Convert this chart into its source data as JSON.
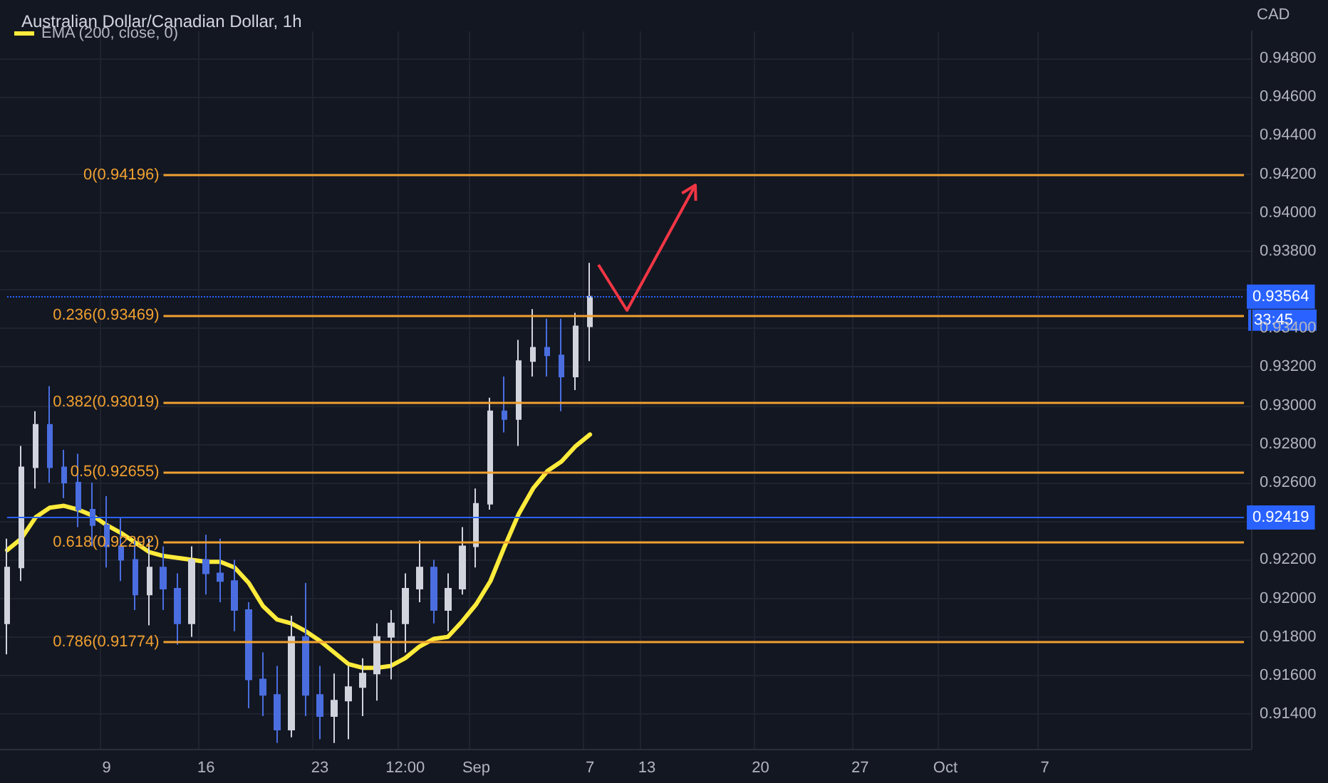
{
  "chart_data": {
    "type": "candlestick",
    "title": "Australian Dollar/Canadian Dollar, 1h",
    "ylabel": "CAD",
    "categories": [
      null,
      null,
      null,
      null,
      null,
      null,
      null,
      "9",
      null,
      null,
      null,
      null,
      null,
      null,
      "16",
      null,
      null,
      null,
      null,
      null,
      null,
      null,
      "23",
      null,
      null,
      null,
      null,
      null,
      "12:00",
      null,
      null,
      null,
      null,
      "Sep",
      null,
      null,
      null,
      null,
      null,
      null,
      null,
      "7",
      null,
      null,
      null,
      "13",
      null,
      null,
      null,
      null,
      null,
      null,
      null,
      "20",
      null,
      null,
      null,
      null,
      null,
      null,
      "27",
      null,
      null,
      null,
      null,
      null,
      "Oct",
      null,
      null,
      null,
      null,
      null,
      null,
      "7",
      null,
      null,
      null,
      null,
      null,
      null,
      null,
      null,
      null,
      null,
      null,
      null,
      null,
      null
    ],
    "series": [
      {
        "colors": [
          "#d1d4dc",
          "#d1d4dc",
          "#d1d4dc",
          "#4a6ee0",
          "#4a6ee0",
          "#4a6ee0",
          "#4a6ee0",
          "#4a6ee0",
          "#4a6ee0",
          "#4a6ee0",
          "#d1d4dc",
          "#4a6ee0",
          "#4a6ee0",
          "#d1d4dc",
          "#4a6ee0",
          "#4a6ee0",
          "#4a6ee0",
          "#4a6ee0",
          "#4a6ee0",
          "#4a6ee0",
          "#d1d4dc",
          "#4a6ee0",
          "#4a6ee0",
          "#d1d4dc",
          "#d1d4dc",
          "#d1d4dc",
          "#d1d4dc",
          "#d1d4dc",
          "#d1d4dc",
          "#d1d4dc",
          "#4a6ee0",
          "#d1d4dc",
          "#d1d4dc",
          "#d1d4dc",
          "#d1d4dc",
          "#4a6ee0",
          "#d1d4dc",
          "#d1d4dc",
          "#4a6ee0",
          "#4a6ee0",
          "#d1d4dc",
          "#d1d4dc",
          null,
          null,
          null,
          null,
          null,
          null,
          null,
          null,
          null,
          null,
          null,
          null,
          null,
          null,
          null,
          null,
          null,
          null,
          null,
          null,
          null,
          null,
          null,
          null,
          null,
          null,
          null,
          null,
          null,
          null,
          null,
          null,
          null,
          null,
          null,
          null,
          null,
          null,
          null,
          null,
          null,
          null,
          null,
          null,
          null,
          null
        ],
        "ohlc": [
          [
            0.9187,
            0.9231,
            0.9171,
            0.9216
          ],
          [
            0.9216,
            0.9279,
            0.9209,
            0.9268
          ],
          [
            0.9268,
            0.9297,
            0.9257,
            0.929
          ],
          [
            0.929,
            0.931,
            0.926,
            0.9268
          ],
          [
            0.9268,
            0.9277,
            0.9252,
            0.926
          ],
          [
            0.926,
            0.9275,
            0.9237,
            0.9246
          ],
          [
            0.9246,
            0.926,
            0.9227,
            0.9238
          ],
          [
            0.9238,
            0.9253,
            0.9216,
            0.9227
          ],
          [
            0.9227,
            0.9242,
            0.9209,
            0.922
          ],
          [
            0.922,
            0.9231,
            0.9194,
            0.9202
          ],
          [
            0.9202,
            0.9231,
            0.9186,
            0.9216
          ],
          [
            0.9216,
            0.9227,
            0.9194,
            0.9205
          ],
          [
            0.9205,
            0.9213,
            0.9176,
            0.9187
          ],
          [
            0.9187,
            0.9227,
            0.918,
            0.922
          ],
          [
            0.922,
            0.9233,
            0.9202,
            0.9213
          ],
          [
            0.9213,
            0.9231,
            0.9198,
            0.9209
          ],
          [
            0.9209,
            0.922,
            0.9183,
            0.9194
          ],
          [
            0.9194,
            0.9198,
            0.9143,
            0.9158
          ],
          [
            0.9158,
            0.9172,
            0.9139,
            0.915
          ],
          [
            0.915,
            0.9165,
            0.9125,
            0.9132
          ],
          [
            0.9132,
            0.9191,
            0.9128,
            0.918
          ],
          [
            0.918,
            0.9208,
            0.9139,
            0.915
          ],
          [
            0.915,
            0.9165,
            0.9127,
            0.9139
          ],
          [
            0.9139,
            0.9161,
            0.9125,
            0.9147
          ],
          [
            0.9147,
            0.9165,
            0.9127,
            0.9154
          ],
          [
            0.9154,
            0.9169,
            0.9139,
            0.9161
          ],
          [
            0.9161,
            0.9187,
            0.9147,
            0.918
          ],
          [
            0.918,
            0.9194,
            0.9158,
            0.9187
          ],
          [
            0.9187,
            0.9213,
            0.9172,
            0.9205
          ],
          [
            0.9205,
            0.923,
            0.9198,
            0.9216
          ],
          [
            0.9216,
            0.922,
            0.9187,
            0.9194
          ],
          [
            0.9194,
            0.9213,
            0.9183,
            0.9205
          ],
          [
            0.9205,
            0.9237,
            0.9202,
            0.9227
          ],
          [
            0.9227,
            0.9257,
            0.9216,
            0.9249
          ],
          [
            0.9249,
            0.9304,
            0.9246,
            0.9297
          ],
          [
            0.9297,
            0.9315,
            0.9286,
            0.9293
          ],
          [
            0.9293,
            0.9334,
            0.9279,
            0.9323
          ],
          [
            0.9323,
            0.935,
            0.9315,
            0.933
          ],
          [
            0.933,
            0.9345,
            0.9315,
            0.9326
          ],
          [
            0.9326,
            0.9345,
            0.9297,
            0.9315
          ],
          [
            0.9315,
            0.9348,
            0.9308,
            0.9341
          ],
          [
            0.9341,
            0.9374,
            0.9323,
            0.93564
          ],
          null,
          null,
          null,
          null,
          null,
          null,
          null,
          null,
          null,
          null,
          null,
          null,
          null,
          null,
          null,
          null,
          null,
          null,
          null,
          null,
          null,
          null,
          null,
          null,
          null,
          null,
          null,
          null,
          null,
          null,
          null,
          null,
          null,
          null,
          null,
          null,
          null,
          null,
          null,
          null,
          null,
          null,
          null,
          null,
          null,
          null
        ]
      },
      {
        "type": "line",
        "name": "EMA (200, close, 0)",
        "color": "#ffeb3b",
        "marker": "none",
        "values": [
          0.9225,
          0.9231,
          0.9242,
          0.9247,
          0.9248,
          0.9246,
          0.9243,
          0.9238,
          0.9234,
          0.9229,
          0.9224,
          0.9222,
          0.9221,
          0.922,
          0.9219,
          0.9219,
          0.9216,
          0.9208,
          0.9196,
          0.9189,
          0.9187,
          0.9183,
          0.9178,
          0.9172,
          0.9166,
          0.9164,
          0.9164,
          0.9165,
          0.9169,
          0.9175,
          0.9179,
          0.918,
          0.9188,
          0.9197,
          0.9209,
          0.9227,
          0.9244,
          0.9257,
          0.9266,
          0.9271,
          0.9279,
          0.9285,
          null,
          null,
          null,
          null,
          null,
          null,
          null,
          null,
          null,
          null,
          null,
          null,
          null,
          null,
          null,
          null,
          null,
          null,
          null,
          null,
          null,
          null,
          null,
          null,
          null,
          null,
          null,
          null,
          null,
          null,
          null,
          null,
          null,
          null,
          null,
          null,
          null,
          null,
          null,
          null,
          null,
          null,
          null,
          null,
          null,
          null
        ]
      }
    ],
    "ylim": [
      0.9122,
      0.9494
    ],
    "yticks": [
      {
        "value": 0.914,
        "label": "0.91400"
      },
      {
        "value": 0.916,
        "label": "0.91600"
      },
      {
        "value": 0.918,
        "label": "0.91800"
      },
      {
        "value": 0.92,
        "label": "0.92000"
      },
      {
        "value": 0.922,
        "label": "0.92200"
      },
      {
        "value": 0.924,
        "label": null
      },
      {
        "value": 0.926,
        "label": "0.92600"
      },
      {
        "value": 0.928,
        "label": "0.92800"
      },
      {
        "value": 0.93,
        "label": "0.93000"
      },
      {
        "value": 0.932,
        "label": "0.93200"
      },
      {
        "value": 0.934,
        "label": "0.93400"
      },
      {
        "value": 0.936,
        "label": null
      },
      {
        "value": 0.938,
        "label": "0.93800"
      },
      {
        "value": 0.94,
        "label": "0.94000"
      },
      {
        "value": 0.942,
        "label": "0.94200"
      },
      {
        "value": 0.944,
        "label": "0.94400"
      },
      {
        "value": 0.946,
        "label": "0.94600"
      },
      {
        "value": 0.948,
        "label": "0.94800"
      }
    ],
    "ref_lines": [
      {
        "axis": "y",
        "value": 0.94196,
        "label": "0(0.94196)",
        "color": "#f0a030"
      },
      {
        "axis": "y",
        "value": 0.93469,
        "label": "0.236(0.93469)",
        "color": "#f0a030"
      },
      {
        "axis": "y",
        "value": 0.93019,
        "label": "0.382(0.93019)",
        "color": "#f0a030"
      },
      {
        "axis": "y",
        "value": 0.92655,
        "label": "0.5(0.92655)",
        "color": "#f0a030"
      },
      {
        "axis": "y",
        "value": 0.92292,
        "label": "0.618(0.92292)",
        "color": "#f0a030"
      },
      {
        "axis": "y",
        "value": 0.91774,
        "label": "0.786(0.91774)",
        "color": "#f0a030"
      },
      {
        "axis": "y",
        "value": 0.92419,
        "label": "0.92419",
        "color": "#2962ff"
      },
      {
        "axis": "y",
        "value": 0.93564,
        "label": "0.93564",
        "color": "#2962ff",
        "line_style": "dotted"
      }
    ],
    "annotations": [
      "33:45"
    ],
    "grid": true,
    "legend": "top left"
  }
}
